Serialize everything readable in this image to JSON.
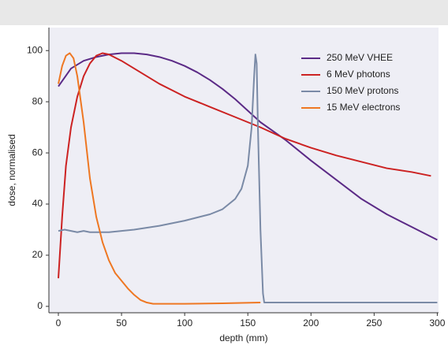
{
  "chart_data": {
    "type": "line",
    "x_label": "depth (mm)",
    "y_label": "dose, normalised",
    "xlim": [
      -7.5,
      301
    ],
    "ylim": [
      -2.5,
      109
    ],
    "xticks": [
      0,
      50,
      100,
      150,
      200,
      250,
      300
    ],
    "yticks": [
      0,
      20,
      40,
      60,
      80,
      100
    ],
    "legend": "upper right",
    "series": [
      {
        "name": "250 MeV VHEE",
        "color": "#5b2a86",
        "x": [
          0,
          10,
          20,
          30,
          40,
          50,
          60,
          70,
          80,
          90,
          100,
          110,
          120,
          130,
          140,
          150,
          160,
          170,
          180,
          190,
          200,
          220,
          240,
          260,
          280,
          300
        ],
        "values": [
          86,
          93,
          96,
          97.5,
          98.5,
          99,
          99,
          98.5,
          97.5,
          96,
          94,
          91.5,
          88.5,
          85,
          81,
          76.5,
          72,
          68.5,
          65,
          61,
          57,
          49.5,
          42,
          36,
          31,
          26
        ]
      },
      {
        "name": "6 MeV photons",
        "color": "#cc2222",
        "x": [
          0,
          3,
          6,
          10,
          15,
          20,
          25,
          30,
          35,
          40,
          50,
          60,
          70,
          80,
          90,
          100,
          120,
          140,
          160,
          180,
          200,
          220,
          240,
          260,
          280,
          295
        ],
        "values": [
          11,
          35,
          55,
          70,
          82,
          90,
          95,
          98,
          99,
          98.5,
          96,
          93,
          90,
          87,
          84.5,
          82,
          78,
          74,
          70,
          65.5,
          62,
          59,
          56.5,
          54,
          52.5,
          51
        ]
      },
      {
        "name": "150 MeV protons",
        "color": "#7a8aa6",
        "x": [
          0,
          5,
          10,
          15,
          20,
          25,
          30,
          40,
          50,
          60,
          80,
          100,
          120,
          130,
          140,
          145,
          150,
          153,
          155,
          156,
          157,
          158,
          160,
          162,
          163,
          200,
          300
        ],
        "values": [
          29.5,
          30,
          29.5,
          29,
          29.5,
          29,
          29,
          29,
          29.5,
          30,
          31.5,
          33.5,
          36,
          38,
          42,
          46,
          55,
          70,
          90,
          98.5,
          95,
          70,
          30,
          5,
          1.5,
          1.5,
          1.5
        ]
      },
      {
        "name": "15 MeV electrons",
        "color": "#ee7722",
        "x": [
          0,
          3,
          6,
          9,
          12,
          15,
          20,
          25,
          30,
          35,
          40,
          45,
          50,
          55,
          60,
          65,
          70,
          75,
          80,
          100,
          130,
          160
        ],
        "values": [
          87,
          94,
          98,
          99,
          97,
          90,
          72,
          50,
          35,
          25,
          18,
          13,
          10,
          7,
          4.5,
          2.5,
          1.5,
          1,
          1,
          1,
          1.2,
          1.5
        ]
      }
    ]
  }
}
